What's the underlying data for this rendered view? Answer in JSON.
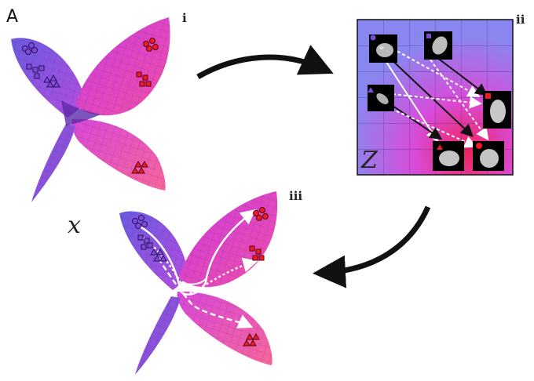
{
  "figure": {
    "panel_label": "A",
    "subpanels": [
      "i",
      "ii",
      "iii"
    ],
    "latent_symbol": "Z",
    "input_symbol": "x"
  },
  "colors": {
    "purple": "#7b3fd6",
    "magenta": "#e02bd0",
    "pink": "#f04d9a",
    "grid_blue": "#8a86f0",
    "red_marker": "#ee1c25",
    "purple_marker": "#7d4bd8",
    "arrow": "#111111"
  },
  "icons": {
    "manifold": "butterfly-manifold-surface",
    "cell": "cell-nucleus-thumbnail",
    "circle": "circle-marker",
    "square": "square-marker",
    "triangle": "triangle-marker"
  }
}
